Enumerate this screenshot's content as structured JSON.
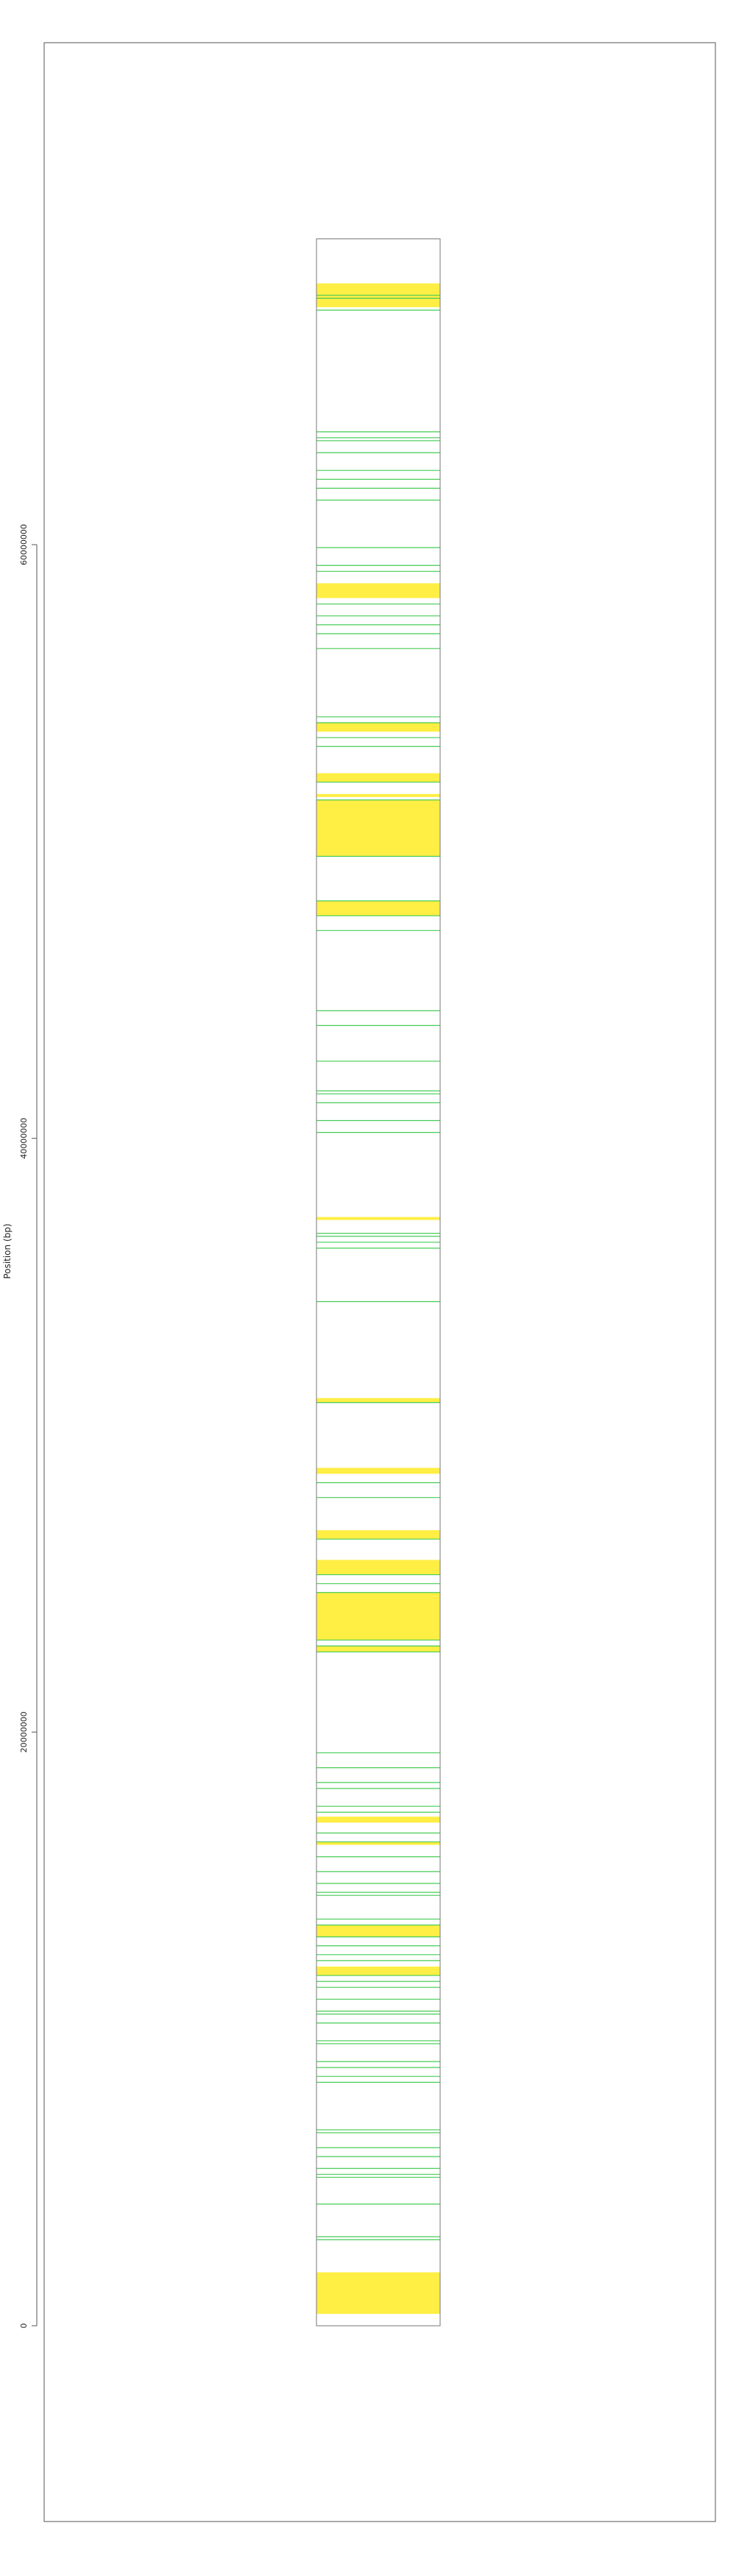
{
  "chart_data": {
    "type": "ideogram",
    "title": "",
    "xlabel": "",
    "ylabel": "Position (bp)",
    "ylim": [
      0,
      70500000
    ],
    "y_ticks": [
      0,
      20000000,
      40000000,
      60000000
    ],
    "y_tick_labels": [
      "0",
      "20000000",
      "40000000",
      "60000000"
    ],
    "chromosome_length": 70300000,
    "colors": {
      "yellow": "#ffee44",
      "green": "#44cc55",
      "outline": "#777777",
      "frame": "#555555"
    },
    "yellow_regions": [
      [
        400000,
        1800000
      ],
      [
        11800000,
        12100000
      ],
      [
        13100000,
        13500000
      ],
      [
        16200000,
        16300000
      ],
      [
        16950000,
        17150000
      ],
      [
        22700000,
        22900000
      ],
      [
        23100000,
        24700000
      ],
      [
        25300000,
        25800000
      ],
      [
        26500000,
        26800000
      ],
      [
        28700000,
        28900000
      ],
      [
        31100000,
        31250000
      ],
      [
        37250000,
        37350000
      ],
      [
        47500000,
        48000000
      ],
      [
        49500000,
        51400000
      ],
      [
        51500000,
        51600000
      ],
      [
        52000000,
        52300000
      ],
      [
        53700000,
        54000000
      ],
      [
        58200000,
        58700000
      ],
      [
        68000000,
        68800000
      ]
    ],
    "green_lines": [
      2900000,
      3000000,
      4100000,
      5000000,
      5100000,
      5300000,
      5700000,
      6000000,
      6500000,
      6600000,
      8200000,
      8400000,
      8700000,
      8900000,
      9500000,
      9600000,
      10200000,
      10500000,
      10600000,
      11000000,
      11400000,
      11600000,
      11800000,
      12300000,
      12500000,
      12800000,
      13100000,
      13500000,
      13700000,
      14500000,
      14600000,
      14900000,
      15300000,
      15800000,
      16300000,
      16600000,
      17300000,
      17500000,
      18100000,
      18300000,
      18800000,
      19300000,
      22700000,
      22900000,
      23100000,
      24700000,
      25000000,
      25300000,
      26500000,
      27900000,
      28400000,
      31100000,
      34500000,
      36300000,
      36500000,
      36700000,
      36800000,
      40200000,
      40600000,
      41200000,
      41500000,
      41600000,
      42600000,
      43800000,
      44300000,
      47000000,
      47500000,
      48000000,
      49500000,
      51400000,
      52000000,
      53200000,
      53500000,
      54000000,
      54200000,
      56500000,
      57000000,
      57300000,
      57600000,
      58000000,
      59100000,
      59300000,
      59900000,
      61500000,
      61900000,
      62200000,
      62500000,
      63100000,
      63500000,
      63600000,
      63800000,
      67900000,
      68300000,
      68400000
    ]
  }
}
